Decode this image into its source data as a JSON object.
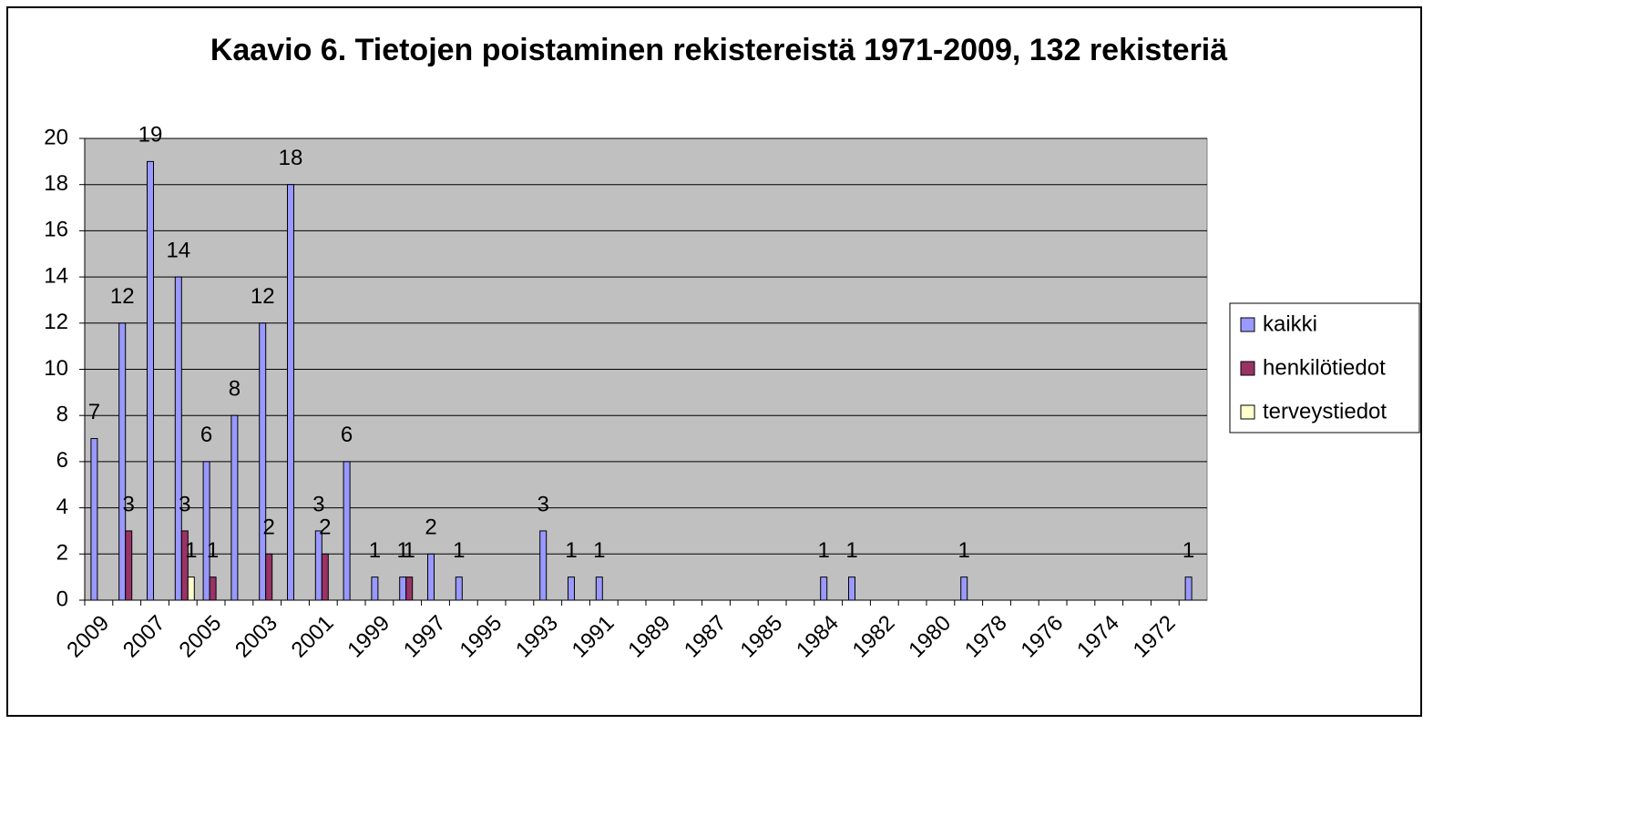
{
  "chart_data": {
    "type": "bar",
    "title": "Kaavio 6. Tietojen poistaminen rekistereistä 1971-2009, 132 rekisteriä",
    "categories": [
      "2009",
      null,
      "2007",
      null,
      "2005",
      null,
      "2003",
      null,
      "2001",
      null,
      "1999",
      null,
      "1997",
      null,
      "1995",
      null,
      "1993",
      null,
      "1991",
      null,
      "1989",
      null,
      "1987",
      null,
      "1985",
      null,
      "1984",
      null,
      "1982",
      null,
      "1980",
      null,
      "1978",
      null,
      "1976",
      null,
      "1974",
      null,
      "1972",
      null
    ],
    "series": [
      {
        "name": "kaikki",
        "color": "#9999ff",
        "values": [
          7,
          12,
          19,
          14,
          6,
          8,
          12,
          18,
          3,
          6,
          1,
          1,
          2,
          1,
          null,
          null,
          3,
          1,
          1,
          null,
          null,
          null,
          null,
          null,
          null,
          null,
          1,
          1,
          null,
          null,
          null,
          1,
          null,
          null,
          null,
          null,
          null,
          null,
          null,
          1
        ]
      },
      {
        "name": "henkilötiedot",
        "color": "#993366",
        "values": [
          null,
          3,
          null,
          3,
          1,
          null,
          2,
          null,
          2,
          null,
          null,
          1,
          null,
          null,
          null,
          null,
          null,
          null,
          null,
          null,
          null,
          null,
          null,
          null,
          null,
          null,
          null,
          null,
          null,
          null,
          null,
          null,
          null,
          null,
          null,
          null,
          null,
          null,
          null,
          null
        ]
      },
      {
        "name": "terveystiedot",
        "color": "#ffffcc",
        "values": [
          null,
          null,
          null,
          1,
          null,
          null,
          null,
          null,
          null,
          null,
          null,
          null,
          null,
          null,
          null,
          null,
          null,
          null,
          null,
          null,
          null,
          null,
          null,
          null,
          null,
          null,
          null,
          null,
          null,
          null,
          null,
          null,
          null,
          null,
          null,
          null,
          null,
          null,
          null,
          null
        ]
      }
    ],
    "ylim": [
      0,
      20
    ],
    "yticks": [
      0,
      2,
      4,
      6,
      8,
      10,
      12,
      14,
      16,
      18,
      20
    ],
    "grid": true,
    "legend": "right",
    "plot_background": "#c0c0c0"
  }
}
